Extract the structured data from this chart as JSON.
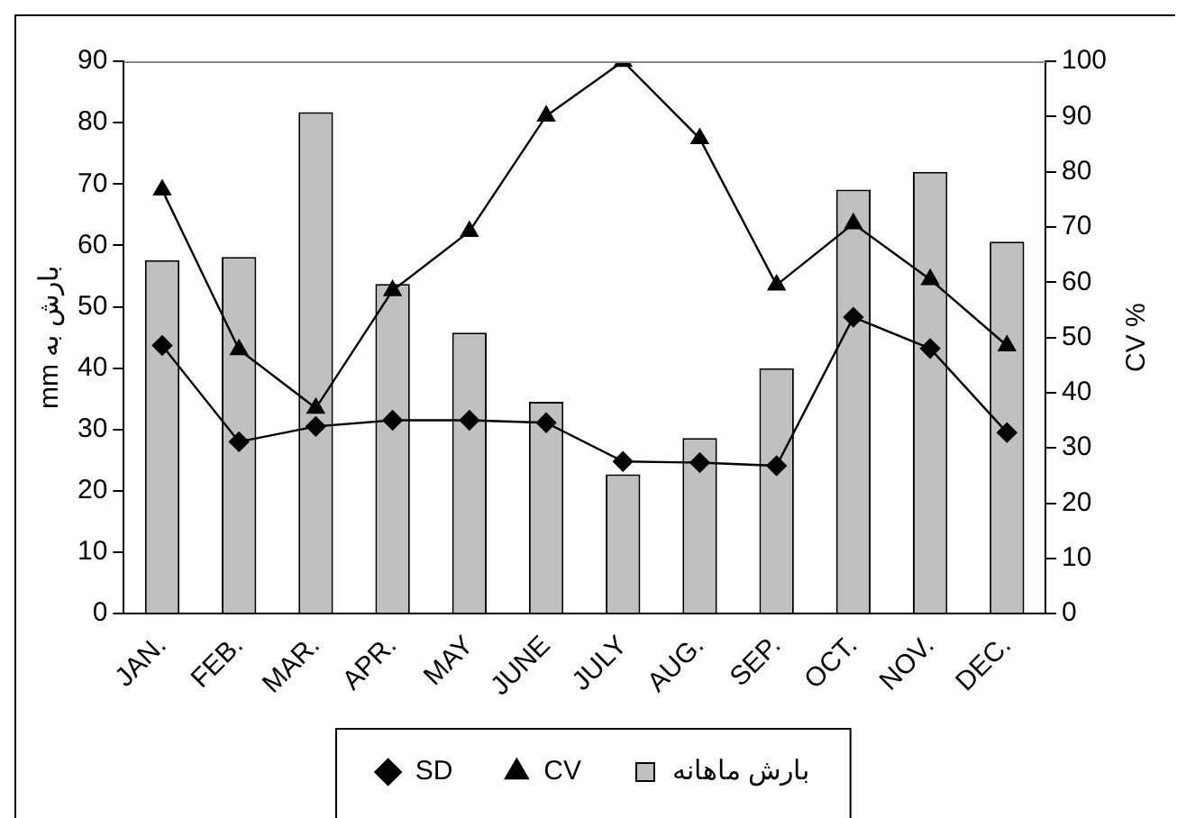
{
  "chart_data": {
    "type": "bar",
    "categories": [
      "JAN.",
      "FEB.",
      "MAR.",
      "APR.",
      "MAY",
      "JUNE",
      "JULY",
      "AUG.",
      "SEP.",
      "OCT.",
      "NOV.",
      "DEC."
    ],
    "ylabel": "بارش به mm",
    "y2label": "CV %",
    "ylim": [
      0,
      90
    ],
    "yticks": [
      0,
      10,
      20,
      30,
      40,
      50,
      60,
      70,
      80,
      90
    ],
    "y2lim": [
      0,
      100
    ],
    "y2ticks": [
      0,
      10,
      20,
      30,
      40,
      50,
      60,
      70,
      80,
      90,
      100
    ],
    "grid": false,
    "legend": "bottom",
    "series": [
      {
        "name": "بارش ماهانه",
        "color": "#c0c0c0",
        "values": [
          57.6,
          58.1,
          81.7,
          53.7,
          45.8,
          34.5,
          22.7,
          28.6,
          40.0,
          69.1,
          72.0,
          60.6
        ]
      },
      {
        "name": "SD",
        "type": "line",
        "color": "#000000",
        "marker": "diamond",
        "values": [
          43.7,
          28.0,
          30.5,
          31.5,
          31.5,
          31.1,
          24.8,
          24.6,
          24.1,
          48.3,
          43.2,
          29.5
        ]
      },
      {
        "name": "CV",
        "type": "line",
        "axis": "y2",
        "color": "#000000",
        "marker": "triangle",
        "values": [
          76.7,
          47.8,
          37.2,
          58.5,
          69.2,
          90.1,
          100,
          86.0,
          59.5,
          70.6,
          60.5,
          48.5
        ]
      }
    ]
  }
}
